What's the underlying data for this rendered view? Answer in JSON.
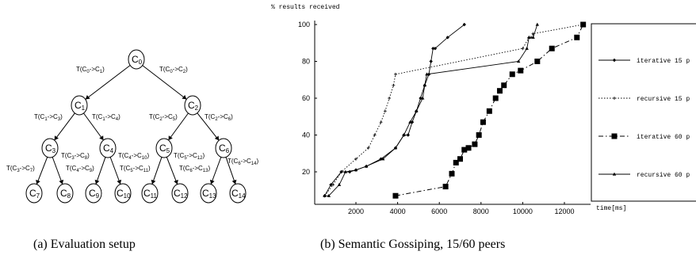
{
  "tree": {
    "nodes": [
      {
        "id": "C0",
        "base": "C",
        "sub": "0"
      },
      {
        "id": "C1",
        "base": "C",
        "sub": "1"
      },
      {
        "id": "C2",
        "base": "C",
        "sub": "2"
      },
      {
        "id": "C3",
        "base": "C",
        "sub": "3"
      },
      {
        "id": "C4",
        "base": "C",
        "sub": "4"
      },
      {
        "id": "C5",
        "base": "C",
        "sub": "5"
      },
      {
        "id": "C6",
        "base": "C",
        "sub": "6"
      },
      {
        "id": "C7",
        "base": "C",
        "sub": "7"
      },
      {
        "id": "C8",
        "base": "C",
        "sub": "8"
      },
      {
        "id": "C9",
        "base": "C",
        "sub": "9"
      },
      {
        "id": "C10",
        "base": "C",
        "sub": "10"
      },
      {
        "id": "C11",
        "base": "C",
        "sub": "11"
      },
      {
        "id": "C12",
        "base": "C",
        "sub": "12"
      },
      {
        "id": "C13",
        "base": "C",
        "sub": "13"
      },
      {
        "id": "C14",
        "base": "C",
        "sub": "14"
      }
    ],
    "edges": [
      {
        "from": "C0",
        "to": "C1",
        "label": [
          [
            "T(C",
            ""
          ],
          [
            "0",
            "s"
          ],
          [
            "->C",
            ""
          ],
          [
            "1",
            "s"
          ],
          [
            ")",
            ""
          ]
        ]
      },
      {
        "from": "C0",
        "to": "C2",
        "label": [
          [
            "T(C",
            ""
          ],
          [
            "0",
            "s"
          ],
          [
            "->C",
            ""
          ],
          [
            "2",
            "s"
          ],
          [
            ")",
            ""
          ]
        ]
      },
      {
        "from": "C1",
        "to": "C3",
        "label": [
          [
            "T(C",
            ""
          ],
          [
            "1",
            "s"
          ],
          [
            "->C",
            ""
          ],
          [
            "3",
            "s"
          ],
          [
            ")",
            ""
          ]
        ]
      },
      {
        "from": "C1",
        "to": "C4",
        "label": [
          [
            "T(C",
            ""
          ],
          [
            "1",
            "s"
          ],
          [
            "->C",
            ""
          ],
          [
            "4",
            "s"
          ],
          [
            ")",
            ""
          ]
        ]
      },
      {
        "from": "C2",
        "to": "C5",
        "label": [
          [
            "T(C",
            ""
          ],
          [
            "2",
            "s"
          ],
          [
            "->C",
            ""
          ],
          [
            "5",
            "s"
          ],
          [
            ")",
            ""
          ]
        ]
      },
      {
        "from": "C2",
        "to": "C6",
        "label": [
          [
            "T(C",
            ""
          ],
          [
            "2",
            "s"
          ],
          [
            "->C",
            ""
          ],
          [
            "6",
            "s"
          ],
          [
            ")",
            ""
          ]
        ]
      },
      {
        "from": "C3",
        "to": "C7",
        "label": [
          [
            "T(C",
            ""
          ],
          [
            "3",
            "s"
          ],
          [
            "->C",
            ""
          ],
          [
            "7",
            "s"
          ],
          [
            ")",
            ""
          ]
        ]
      },
      {
        "from": "C3",
        "to": "C8",
        "label": [
          [
            "T(C",
            ""
          ],
          [
            "3",
            "s"
          ],
          [
            "->C",
            ""
          ],
          [
            "8",
            "s"
          ],
          [
            ")",
            ""
          ]
        ]
      },
      {
        "from": "C4",
        "to": "C9",
        "label": [
          [
            "T(C",
            ""
          ],
          [
            "4",
            "s"
          ],
          [
            "->C",
            ""
          ],
          [
            "9",
            "s"
          ],
          [
            ")",
            ""
          ]
        ]
      },
      {
        "from": "C4",
        "to": "C10",
        "label": [
          [
            "T(C",
            ""
          ],
          [
            "4",
            "s"
          ],
          [
            "->C",
            ""
          ],
          [
            "10",
            "s"
          ],
          [
            ")",
            ""
          ]
        ]
      },
      {
        "from": "C5",
        "to": "C11",
        "label": [
          [
            "T(C",
            ""
          ],
          [
            "5",
            "s"
          ],
          [
            "->C",
            ""
          ],
          [
            "11",
            "s"
          ],
          [
            ")",
            ""
          ]
        ]
      },
      {
        "from": "C5",
        "to": "C12",
        "label": [
          [
            "T(C",
            ""
          ],
          [
            "5",
            "s"
          ],
          [
            "->C",
            ""
          ],
          [
            "12",
            "s"
          ],
          [
            ")",
            ""
          ]
        ]
      },
      {
        "from": "C6",
        "to": "C13",
        "label": [
          [
            "T(C",
            ""
          ],
          [
            "6",
            "s"
          ],
          [
            "->C",
            ""
          ],
          [
            "13",
            "s"
          ],
          [
            ")",
            ""
          ]
        ]
      },
      {
        "from": "C6",
        "to": "C14",
        "label": [
          [
            "T(C",
            ""
          ],
          [
            "6",
            "s"
          ],
          [
            "->C",
            ""
          ],
          [
            "14",
            "s"
          ],
          [
            ")",
            ""
          ]
        ]
      }
    ]
  },
  "captions": {
    "a": "(a) Evaluation setup",
    "b": "(b) Semantic Gossiping, 15/60 peers"
  },
  "chart_data": {
    "type": "line",
    "title": "",
    "ylabel": "% results received",
    "xlabel": "time[ms]",
    "xlim": [
      0,
      13000
    ],
    "ylim": [
      0,
      100
    ],
    "xticks": [
      "2000",
      "4000",
      "6000",
      "8000",
      "10000",
      "12000"
    ],
    "yticks": [
      "20",
      "40",
      "60",
      "80",
      "100"
    ],
    "grid": false,
    "legend_placement": "right",
    "series": [
      {
        "name": "iterative 15 p",
        "line": "solid",
        "marker": "diamond",
        "x": [
          500,
          800,
          1300,
          1700,
          2000,
          2500,
          3200,
          3900,
          4300,
          4500,
          4700,
          4900,
          5100,
          5300,
          5500,
          5600,
          5700,
          5800,
          6400,
          7200
        ],
        "y": [
          7,
          13,
          20,
          20,
          21,
          23,
          27,
          33,
          40,
          40,
          47,
          53,
          60,
          67,
          73,
          80,
          87,
          87,
          93,
          100
        ]
      },
      {
        "name": "recursive 15 p",
        "line": "dotted",
        "marker": "plus",
        "x": [
          500,
          900,
          1300,
          2000,
          2600,
          2900,
          3200,
          3400,
          3600,
          3800,
          3900,
          10000,
          10300,
          10400,
          10500,
          12900
        ],
        "y": [
          7,
          13,
          20,
          27,
          33,
          40,
          47,
          53,
          60,
          67,
          73,
          87,
          93,
          93,
          95,
          100
        ]
      },
      {
        "name": "iterative 60 p",
        "line": "dashdot",
        "marker": "square",
        "x": [
          3900,
          6300,
          6600,
          6800,
          7000,
          7200,
          7400,
          7700,
          7900,
          8100,
          8400,
          8700,
          8900,
          9100,
          9500,
          9900,
          10700,
          11400,
          12600,
          12900
        ],
        "y": [
          7,
          12,
          19,
          25,
          27,
          32,
          33,
          35,
          40,
          47,
          53,
          60,
          64,
          67,
          73,
          75,
          80,
          87,
          93,
          100
        ]
      },
      {
        "name": "recursive 60 p",
        "line": "solid",
        "marker": "triangle",
        "x": [
          500,
          700,
          1200,
          1500,
          2000,
          2500,
          3300,
          3900,
          4300,
          4600,
          4900,
          5200,
          5300,
          5400,
          9800,
          10200,
          10300,
          10500,
          10700
        ],
        "y": [
          7,
          7,
          13,
          20,
          21,
          23,
          27,
          33,
          40,
          47,
          53,
          60,
          67,
          73,
          80,
          87,
          93,
          93,
          100
        ]
      }
    ]
  }
}
